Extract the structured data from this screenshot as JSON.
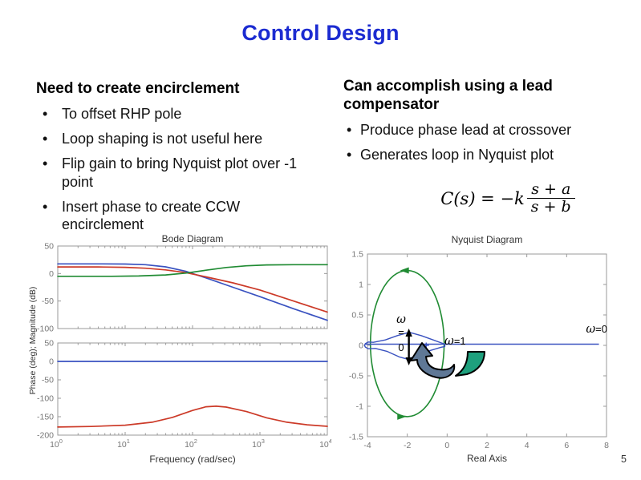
{
  "slide": {
    "title": "Control Design",
    "title_color": "#1b2bd1",
    "page_number": "5"
  },
  "left_column": {
    "heading": "Need to create encirclement",
    "bullets": [
      [
        "To offset RHP pole"
      ],
      [
        "Loop shaping is not useful here"
      ],
      [
        "Flip gain to bring Nyquist plot over -1",
        "point"
      ],
      [
        "Insert phase to create CCW",
        "encirclement"
      ]
    ]
  },
  "right_column": {
    "heading": "Can accomplish using a lead compensator",
    "bullets": [
      [
        "Produce phase lead at crossover"
      ],
      [
        "Generates loop in Nyquist plot"
      ]
    ],
    "formula": {
      "lhs": "C(s) = −k",
      "numerator": "s + a",
      "denominator": "s + b"
    }
  },
  "chart_data": [
    {
      "id": "bode",
      "type": "line",
      "title": "Bode Diagram",
      "xlabel": "Frequency (rad/sec)",
      "ylabel": "Phase (deg); Magnitude (dB)",
      "x_scale": "log10",
      "xlim": [
        0,
        4
      ],
      "x_major_ticks": [
        0,
        1,
        2,
        3,
        4
      ],
      "x_tick_base": "10",
      "subplots": [
        {
          "name": "magnitude",
          "ylim": [
            -100,
            50
          ],
          "y_ticks": [
            50,
            0,
            -50,
            -100
          ],
          "series": [
            {
              "name": "magnitude-blue",
              "color": "#3a52c0",
              "points": [
                [
                  0,
                  17.5
                ],
                [
                  0.6,
                  17.5
                ],
                [
                  1,
                  17.2
                ],
                [
                  1.3,
                  16
                ],
                [
                  1.6,
                  12.2
                ],
                [
                  1.9,
                  4
                ],
                [
                  2.2,
                  -8
                ],
                [
                  2.6,
                  -25
                ],
                [
                  3,
                  -42
                ],
                [
                  3.5,
                  -64
                ],
                [
                  4,
                  -85
                ]
              ]
            },
            {
              "name": "magnitude-red",
              "color": "#cc3a28",
              "points": [
                [
                  0,
                  12
                ],
                [
                  0.6,
                  12
                ],
                [
                  1,
                  11.3
                ],
                [
                  1.3,
                  9.6
                ],
                [
                  1.6,
                  6.6
                ],
                [
                  1.9,
                  1.6
                ],
                [
                  2.2,
                  -6
                ],
                [
                  2.6,
                  -17
                ],
                [
                  3,
                  -30
                ],
                [
                  3.5,
                  -50
                ],
                [
                  4,
                  -70
                ]
              ]
            },
            {
              "name": "magnitude-green",
              "color": "#208b33",
              "points": [
                [
                  0,
                  -5
                ],
                [
                  0.8,
                  -5
                ],
                [
                  1.2,
                  -4.5
                ],
                [
                  1.6,
                  -2.6
                ],
                [
                  1.9,
                  0.8
                ],
                [
                  2.2,
                  6
                ],
                [
                  2.5,
                  11
                ],
                [
                  2.8,
                  14
                ],
                [
                  3.1,
                  15.6
                ],
                [
                  3.5,
                  16
                ],
                [
                  4,
                  16
                ]
              ]
            }
          ]
        },
        {
          "name": "phase",
          "ylim": [
            -200,
            50
          ],
          "y_ticks": [
            50,
            0,
            -50,
            -100,
            -150,
            -200
          ],
          "series": [
            {
              "name": "phase-blue",
              "color": "#3a52c0",
              "points": [
                [
                  0,
                  0
                ],
                [
                  4,
                  0
                ]
              ]
            },
            {
              "name": "phase-red",
              "color": "#cc3a28",
              "points": [
                [
                  0,
                  -178
                ],
                [
                  0.5,
                  -176.5
                ],
                [
                  1,
                  -173
                ],
                [
                  1.4,
                  -165
                ],
                [
                  1.7,
                  -152
                ],
                [
                  2,
                  -133
                ],
                [
                  2.2,
                  -123
                ],
                [
                  2.35,
                  -121.5
                ],
                [
                  2.5,
                  -124
                ],
                [
                  2.8,
                  -136
                ],
                [
                  3.1,
                  -153
                ],
                [
                  3.4,
                  -165
                ],
                [
                  3.7,
                  -172
                ],
                [
                  4,
                  -176
                ]
              ]
            }
          ]
        }
      ]
    },
    {
      "id": "nyquist",
      "type": "line",
      "title": "Nyquist Diagram",
      "xlabel": "Real Axis",
      "xlim": [
        -4,
        8
      ],
      "ylim": [
        -1.5,
        1.5
      ],
      "x_ticks": [
        -4,
        -2,
        0,
        2,
        4,
        6,
        8
      ],
      "y_ticks": [
        -1.5,
        -1,
        -0.5,
        0,
        0.5,
        1,
        1.5
      ],
      "encirclement_ellipse": {
        "color": "#208b33",
        "cx": -2,
        "cy": 0.03,
        "rx": 1.85,
        "ry": 1.2,
        "direction": "ccw"
      },
      "nyquist_contour": {
        "color": "#3a52c0",
        "real_axis_segment": {
          "y": 0.02,
          "x_from": -4.12,
          "x_to": 7.62
        },
        "lens": [
          [
            -0.12,
            0.02
          ],
          [
            -0.7,
            0.09
          ],
          [
            -1.3,
            0.16
          ],
          [
            -1.9,
            0.215
          ],
          [
            -2.5,
            0.16
          ],
          [
            -3.1,
            0.09
          ],
          [
            -3.7,
            0.05
          ],
          [
            -3.95,
            0.055
          ],
          [
            -4.1,
            0.03
          ],
          [
            -4.15,
            0
          ],
          [
            -4.1,
            -0.03
          ],
          [
            -3.95,
            -0.055
          ],
          [
            -3.6,
            -0.05
          ],
          [
            -3,
            -0.1
          ],
          [
            -2.4,
            -0.19
          ],
          [
            -2,
            -0.225
          ],
          [
            -1.5,
            -0.17
          ],
          [
            -0.9,
            -0.09
          ],
          [
            -0.3,
            -0.03
          ],
          [
            -0.12,
            -0.02
          ]
        ],
        "plus_marker": [
          -1.05,
          0
        ]
      },
      "annotations": {
        "omega_zero_stack": [
          "ω",
          "=",
          "0"
        ],
        "omega_one": {
          "symbol": "ω",
          "rest": "=1"
        },
        "omega_zero_right": {
          "symbol": "ω",
          "rest": "=0"
        },
        "arrow_colors": {
          "gray": "#5f7896",
          "teal": "#1ea07d"
        }
      }
    }
  ]
}
